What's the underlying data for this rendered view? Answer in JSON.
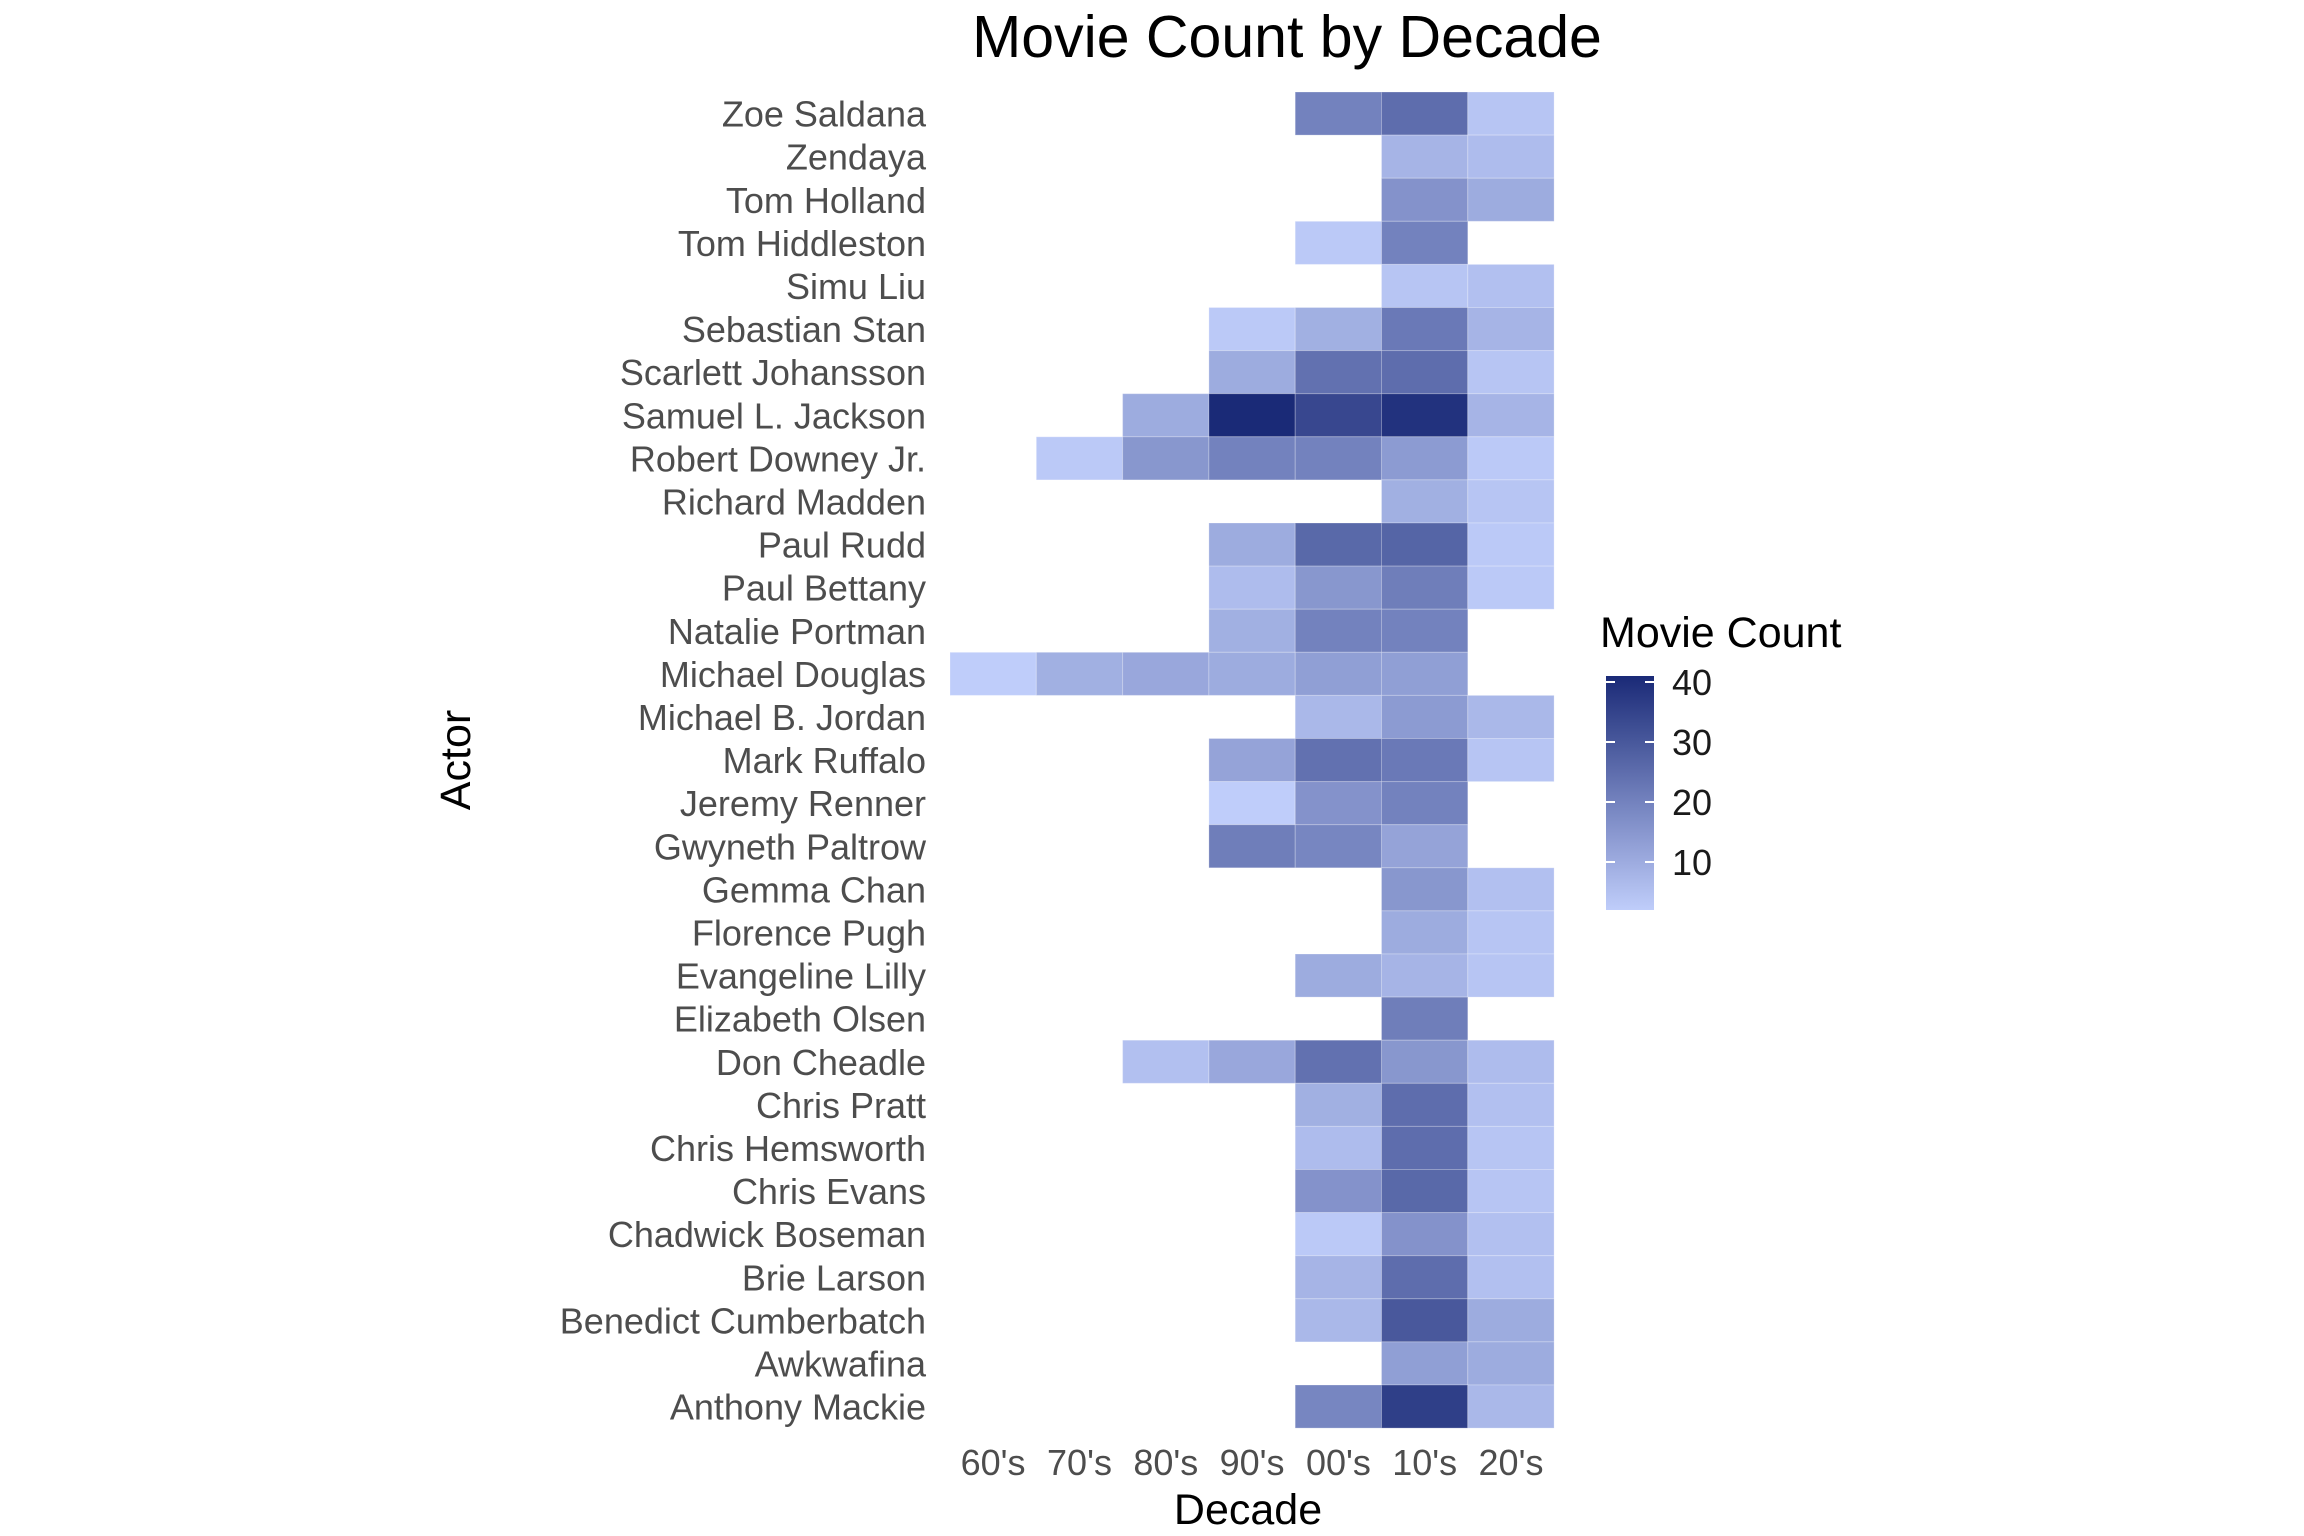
{
  "chart_data": {
    "type": "heatmap",
    "title": "Movie Count by Decade",
    "xlabel": "Decade",
    "ylabel": "Actor",
    "x_categories": [
      "60's",
      "70's",
      "80's",
      "90's",
      "00's",
      "10's",
      "20's"
    ],
    "y_categories": [
      "Zoe Saldana",
      "Zendaya",
      "Tom Holland",
      "Tom Hiddleston",
      "Simu Liu",
      "Sebastian Stan",
      "Scarlett Johansson",
      "Samuel L. Jackson",
      "Robert Downey Jr.",
      "Richard Madden",
      "Paul Rudd",
      "Paul Bettany",
      "Natalie Portman",
      "Michael Douglas",
      "Michael B. Jordan",
      "Mark Ruffalo",
      "Jeremy Renner",
      "Gwyneth Paltrow",
      "Gemma Chan",
      "Florence Pugh",
      "Evangeline Lilly",
      "Elizabeth Olsen",
      "Don Cheadle",
      "Chris Pratt",
      "Chris Hemsworth",
      "Chris Evans",
      "Chadwick Boseman",
      "Brie Larson",
      "Benedict Cumberbatch",
      "Awkwafina",
      "Anthony Mackie"
    ],
    "values": [
      [
        null,
        null,
        null,
        null,
        20,
        25,
        4
      ],
      [
        null,
        null,
        null,
        null,
        null,
        8,
        6
      ],
      [
        null,
        null,
        null,
        null,
        null,
        16,
        10
      ],
      [
        null,
        null,
        null,
        null,
        3,
        20,
        null
      ],
      [
        null,
        null,
        null,
        null,
        null,
        4,
        5
      ],
      [
        null,
        null,
        null,
        3,
        9,
        22,
        8
      ],
      [
        null,
        null,
        null,
        10,
        24,
        25,
        4
      ],
      [
        null,
        null,
        10,
        41,
        34,
        39,
        8
      ],
      [
        null,
        3,
        15,
        20,
        20,
        14,
        3
      ],
      [
        null,
        null,
        null,
        null,
        null,
        9,
        4
      ],
      [
        null,
        null,
        null,
        10,
        26,
        27,
        3
      ],
      [
        null,
        null,
        null,
        6,
        15,
        21,
        3
      ],
      [
        null,
        null,
        null,
        9,
        20,
        20,
        null
      ],
      [
        2,
        9,
        11,
        10,
        13,
        13,
        null
      ],
      [
        null,
        null,
        null,
        null,
        7,
        14,
        7
      ],
      [
        null,
        null,
        null,
        12,
        24,
        22,
        4
      ],
      [
        null,
        null,
        null,
        2,
        16,
        20,
        null
      ],
      [
        null,
        null,
        null,
        21,
        19,
        12,
        null
      ],
      [
        null,
        null,
        null,
        null,
        null,
        15,
        5
      ],
      [
        null,
        null,
        null,
        null,
        null,
        10,
        4
      ],
      [
        null,
        null,
        null,
        null,
        10,
        8,
        4
      ],
      [
        null,
        null,
        null,
        null,
        null,
        21,
        null
      ],
      [
        null,
        null,
        5,
        11,
        24,
        15,
        6
      ],
      [
        null,
        null,
        null,
        null,
        9,
        25,
        5
      ],
      [
        null,
        null,
        null,
        null,
        6,
        25,
        4
      ],
      [
        null,
        null,
        null,
        null,
        16,
        26,
        4
      ],
      [
        null,
        null,
        null,
        null,
        3,
        16,
        5
      ],
      [
        null,
        null,
        null,
        null,
        8,
        25,
        5
      ],
      [
        null,
        null,
        null,
        null,
        7,
        30,
        10
      ],
      [
        null,
        null,
        null,
        null,
        null,
        13,
        10
      ],
      [
        null,
        null,
        null,
        null,
        19,
        36,
        7
      ]
    ],
    "colorbar": {
      "title": "Movie Count",
      "ticks": [
        "40",
        "30",
        "20",
        "10"
      ],
      "range": [
        2,
        41
      ],
      "low_color": "#bfcdfa",
      "high_color": "#1a2a77"
    },
    "grid": false,
    "legend_position": "right"
  }
}
